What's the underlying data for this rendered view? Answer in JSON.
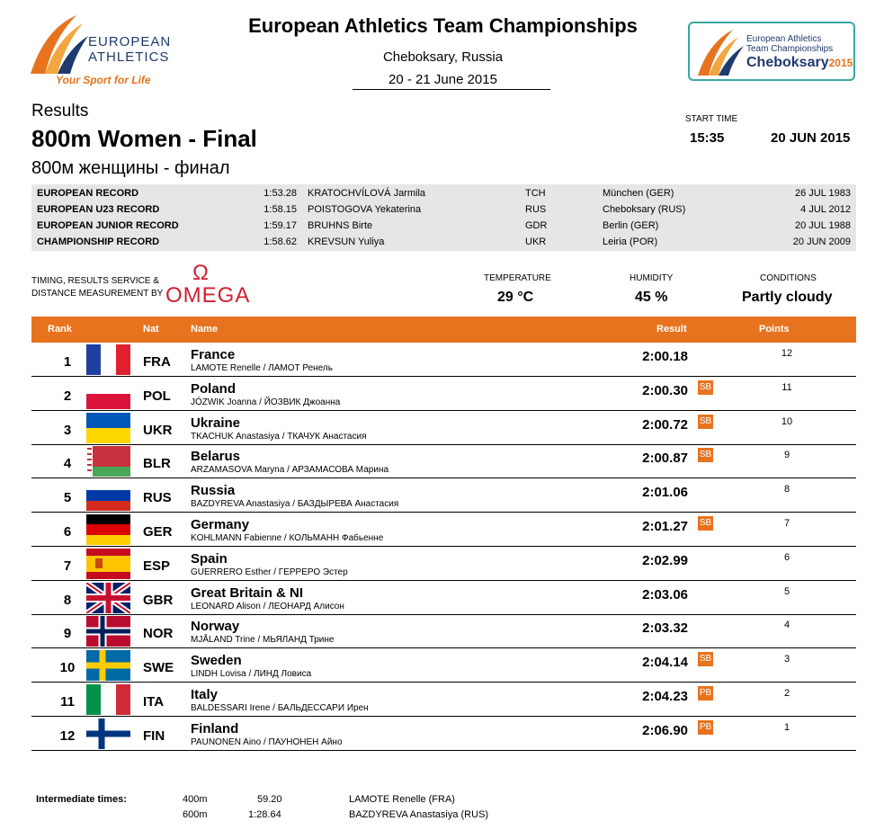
{
  "header": {
    "org_line1": "EUROPEAN",
    "org_line2": "ATHLETICS",
    "tagline": "Your Sport for Life",
    "title": "European Athletics Team Championships",
    "city": "Cheboksary, Russia",
    "dates": "20 - 21 June 2015",
    "champ_logo_line1": "European Athletics",
    "champ_logo_line2": "Team Championships",
    "champ_logo_city": "Cheboksary",
    "champ_logo_year": "2015"
  },
  "event": {
    "results_label": "Results",
    "title": "800m Women - Final",
    "title_ru": "800м женщины - финал",
    "start_time_label": "START TIME",
    "start_time": "15:35",
    "start_date": "20 JUN 2015"
  },
  "records": [
    {
      "name": "EUROPEAN RECORD",
      "time": "1:53.28",
      "athlete": "KRATOCHVÍLOVÁ Jarmila",
      "nat": "TCH",
      "place": "München (GER)",
      "date": "26 JUL 1983"
    },
    {
      "name": "EUROPEAN U23 RECORD",
      "time": "1:58.15",
      "athlete": "POISTOGOVA Yekaterina",
      "nat": "RUS",
      "place": "Cheboksary (RUS)",
      "date": "4 JUL 2012"
    },
    {
      "name": "EUROPEAN JUNIOR RECORD",
      "time": "1:59.17",
      "athlete": "BRUHNS Birte",
      "nat": "GDR",
      "place": "Berlin (GER)",
      "date": "20 JUL 1988"
    },
    {
      "name": "CHAMPIONSHIP RECORD",
      "time": "1:58.62",
      "athlete": "KREVSUN Yuliya",
      "nat": "UKR",
      "place": "Leiria (POR)",
      "date": "20 JUN 2009"
    }
  ],
  "timing": {
    "label_line1": "TIMING, RESULTS SERVICE &",
    "label_line2": "DISTANCE MEASUREMENT BY",
    "sponsor_symbol": "Ω",
    "sponsor": "OMEGA"
  },
  "weather": {
    "temperature_label": "TEMPERATURE",
    "temperature": "29 °C",
    "humidity_label": "HUMIDITY",
    "humidity": "45 %",
    "conditions_label": "CONDITIONS",
    "conditions": "Partly cloudy"
  },
  "table": {
    "headers": {
      "rank": "Rank",
      "nat": "Nat",
      "name": "Name",
      "result": "Result",
      "points": "Points"
    },
    "rows": [
      {
        "rank": "1",
        "nat": "FRA",
        "country": "France",
        "athletes": "LAMOTE Renelle / ЛАМОТ Ренель",
        "result": "2:00.18",
        "badge": "",
        "points": "12",
        "flag": "fra"
      },
      {
        "rank": "2",
        "nat": "POL",
        "country": "Poland",
        "athletes": "JÓZWIK Joanna / ЙОЗВИК Джоанна",
        "result": "2:00.30",
        "badge": "SB",
        "points": "11",
        "flag": "pol"
      },
      {
        "rank": "3",
        "nat": "UKR",
        "country": "Ukraine",
        "athletes": "TKACHUK Anastasiya / ТКАЧУК Анастасия",
        "result": "2:00.72",
        "badge": "SB",
        "points": "10",
        "flag": "ukr"
      },
      {
        "rank": "4",
        "nat": "BLR",
        "country": "Belarus",
        "athletes": "ARZAMASOVA Maryna / АРЗАМАСОВА Марина",
        "result": "2:00.87",
        "badge": "SB",
        "points": "9",
        "flag": "blr"
      },
      {
        "rank": "5",
        "nat": "RUS",
        "country": "Russia",
        "athletes": "BAZDYREVA Anastasiya / БАЗДЫРЕВА Анастасия",
        "result": "2:01.06",
        "badge": "",
        "points": "8",
        "flag": "rus"
      },
      {
        "rank": "6",
        "nat": "GER",
        "country": "Germany",
        "athletes": "KOHLMANN Fabienne / КОЛЬМАНН Фабьенне",
        "result": "2:01.27",
        "badge": "SB",
        "points": "7",
        "flag": "ger"
      },
      {
        "rank": "7",
        "nat": "ESP",
        "country": "Spain",
        "athletes": "GUERRERO Esther / ГЕРРЕРО Эстер",
        "result": "2:02.99",
        "badge": "",
        "points": "6",
        "flag": "esp"
      },
      {
        "rank": "8",
        "nat": "GBR",
        "country": "Great Britain & NI",
        "athletes": "LEONARD Alison / ЛЕОНАРД Алисон",
        "result": "2:03.06",
        "badge": "",
        "points": "5",
        "flag": "gbr"
      },
      {
        "rank": "9",
        "nat": "NOR",
        "country": "Norway",
        "athletes": "MJÅLAND Trine / МЬЯЛАНД Трине",
        "result": "2:03.32",
        "badge": "",
        "points": "4",
        "flag": "nor"
      },
      {
        "rank": "10",
        "nat": "SWE",
        "country": "Sweden",
        "athletes": "LINDH Lovisa / ЛИНД Ловиса",
        "result": "2:04.14",
        "badge": "SB",
        "points": "3",
        "flag": "swe"
      },
      {
        "rank": "11",
        "nat": "ITA",
        "country": "Italy",
        "athletes": "BALDESSARI Irene / БАЛЬДЕССАРИ Ирен",
        "result": "2:04.23",
        "badge": "PB",
        "points": "2",
        "flag": "ita"
      },
      {
        "rank": "12",
        "nat": "FIN",
        "country": "Finland",
        "athletes": "PAUNONEN Aino / ПАУНОНЕН Айно",
        "result": "2:06.90",
        "badge": "PB",
        "points": "1",
        "flag": "fin"
      }
    ]
  },
  "intermediate": {
    "label": "Intermediate times:",
    "splits": [
      {
        "distance": "400m",
        "time": "59.20",
        "athlete": "LAMOTE Renelle (FRA)"
      },
      {
        "distance": "600m",
        "time": "1:28.64",
        "athlete": "BAZDYREVA Anastasiya (RUS)"
      }
    ]
  },
  "colors": {
    "accent": "#e8731e",
    "brand_blue": "#1f3a6e",
    "record_bg": "#e6e6e6",
    "omega_red": "#d11f2e"
  }
}
